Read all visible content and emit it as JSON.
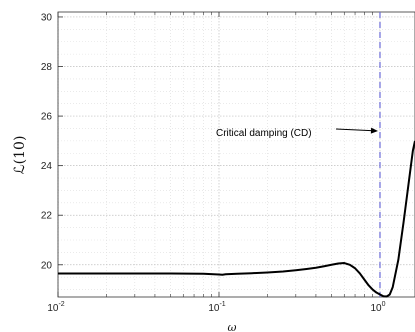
{
  "chart_data": {
    "type": "line",
    "xscale": "log",
    "xlim": [
      0.01,
      1.65
    ],
    "ylim": [
      18.7,
      30.2
    ],
    "x_ticks": [
      0.01,
      0.1,
      1
    ],
    "x_tick_labels": [
      {
        "base": "10",
        "exp": "-2"
      },
      {
        "base": "10",
        "exp": "-1"
      },
      {
        "base": "10",
        "exp": "0"
      }
    ],
    "y_ticks": [
      20,
      22,
      24,
      26,
      28,
      30
    ],
    "y_tick_labels": [
      "20",
      "22",
      "24",
      "26",
      "28",
      "30"
    ],
    "xlabel": "ω",
    "ylabel": "ℒ(10)",
    "grid": true,
    "minor_grid": true,
    "series": [
      {
        "color": "#000000",
        "x": [
          0.01,
          0.02,
          0.05,
          0.08,
          0.1,
          0.105,
          0.11,
          0.13,
          0.16,
          0.2,
          0.25,
          0.3,
          0.35,
          0.4,
          0.45,
          0.5,
          0.55,
          0.6,
          0.65,
          0.7,
          0.75,
          0.8,
          0.85,
          0.9,
          0.95,
          1.0,
          1.05,
          1.1,
          1.15,
          1.2,
          1.3,
          1.4,
          1.5,
          1.6,
          1.65
        ],
        "y": [
          19.65,
          19.65,
          19.65,
          19.64,
          19.61,
          19.6,
          19.62,
          19.64,
          19.66,
          19.69,
          19.73,
          19.78,
          19.83,
          19.88,
          19.94,
          20.0,
          20.05,
          20.07,
          20.0,
          19.86,
          19.65,
          19.4,
          19.17,
          19.0,
          18.88,
          18.8,
          18.73,
          18.72,
          18.8,
          19.1,
          20.2,
          21.7,
          23.2,
          24.6,
          25.0
        ]
      }
    ],
    "vline": {
      "x": 1.0,
      "color": "#6a6ad8",
      "style": "dashed"
    },
    "annotation": {
      "text": "Critical damping (CD)",
      "arrow_to": [
        1.0,
        25.4
      ]
    }
  }
}
